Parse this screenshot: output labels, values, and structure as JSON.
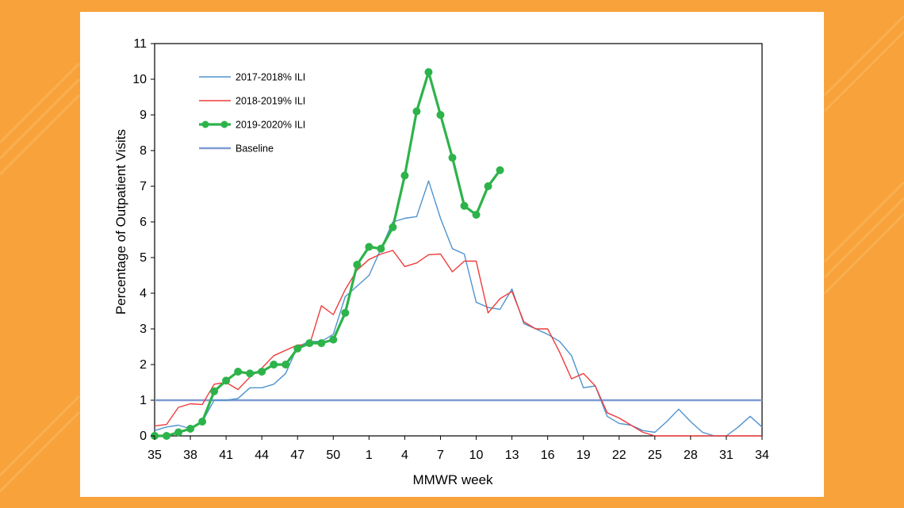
{
  "colors": {
    "background": "#f7a23a",
    "card": "#ffffff",
    "s2017": "#4f93cf",
    "s2018": "#ef3b3b",
    "s2019": "#2db34a",
    "baseline": "#7f9bd3"
  },
  "chart_data": {
    "type": "line",
    "xlabel": "MMWR week",
    "ylabel": "Percentage  of Outpatient  Visits",
    "ylim": [
      0,
      11
    ],
    "yticks": [
      0,
      1,
      2,
      3,
      4,
      5,
      6,
      7,
      8,
      9,
      10,
      11
    ],
    "xtick_labels": [
      "35",
      "38",
      "41",
      "44",
      "47",
      "50",
      "1",
      "4",
      "7",
      "10",
      "13",
      "16",
      "19",
      "22",
      "25",
      "28",
      "31",
      "34"
    ],
    "week_order": [
      35,
      36,
      37,
      38,
      39,
      40,
      41,
      42,
      43,
      44,
      45,
      46,
      47,
      48,
      49,
      50,
      51,
      52,
      1,
      2,
      3,
      4,
      5,
      6,
      7,
      8,
      9,
      10,
      11,
      12,
      13,
      14,
      15,
      16,
      17,
      18,
      19,
      20,
      21,
      22,
      23,
      24,
      25,
      26,
      27,
      28,
      29,
      30,
      31,
      32,
      33,
      34
    ],
    "legend_position": "top-left",
    "series": [
      {
        "name": "2017-2018% ILI",
        "key": "s2017",
        "values": [
          0.15,
          0.25,
          0.3,
          0.2,
          0.4,
          1.0,
          1.0,
          1.05,
          1.35,
          1.35,
          1.45,
          1.75,
          2.5,
          2.65,
          2.65,
          2.85,
          3.9,
          4.2,
          4.5,
          5.25,
          6.0,
          6.1,
          6.15,
          7.15,
          6.1,
          5.25,
          5.1,
          3.75,
          3.6,
          3.55,
          4.12,
          3.15,
          3.0,
          2.85,
          2.65,
          2.25,
          1.35,
          1.4,
          0.55,
          0.35,
          0.3,
          0.15,
          0.1,
          0.4,
          0.75,
          0.4,
          0.1,
          0.0,
          0.0,
          0.25,
          0.55,
          0.25
        ]
      },
      {
        "name": "2018-2019% ILI",
        "key": "s2018",
        "values": [
          0.28,
          0.32,
          0.8,
          0.9,
          0.88,
          1.45,
          1.5,
          1.3,
          1.65,
          1.9,
          2.25,
          2.4,
          2.55,
          2.55,
          3.65,
          3.4,
          4.1,
          4.65,
          4.95,
          5.1,
          5.2,
          4.75,
          4.85,
          5.08,
          5.1,
          4.6,
          4.9,
          4.9,
          3.45,
          3.85,
          4.05,
          3.2,
          3.0,
          3.0,
          2.35,
          1.6,
          1.75,
          1.4,
          0.65,
          0.5,
          0.3,
          0.1,
          0.0,
          0.0,
          0.0,
          0.0,
          0.0,
          0.0,
          0.0,
          0.0,
          0.0,
          0.0
        ]
      },
      {
        "name": "2019-2020% ILI",
        "key": "s2019",
        "markers": true,
        "values": [
          0.0,
          0.0,
          0.1,
          0.2,
          0.4,
          1.25,
          1.55,
          1.8,
          1.75,
          1.8,
          2.0,
          2.0,
          2.45,
          2.6,
          2.6,
          2.7,
          3.45,
          4.8,
          5.3,
          5.25,
          5.85,
          7.3,
          9.1,
          10.2,
          9.0,
          7.8,
          6.45,
          6.2,
          7.0,
          7.45
        ]
      },
      {
        "name": "Baseline",
        "key": "baseline",
        "constant": 1.0
      }
    ]
  }
}
